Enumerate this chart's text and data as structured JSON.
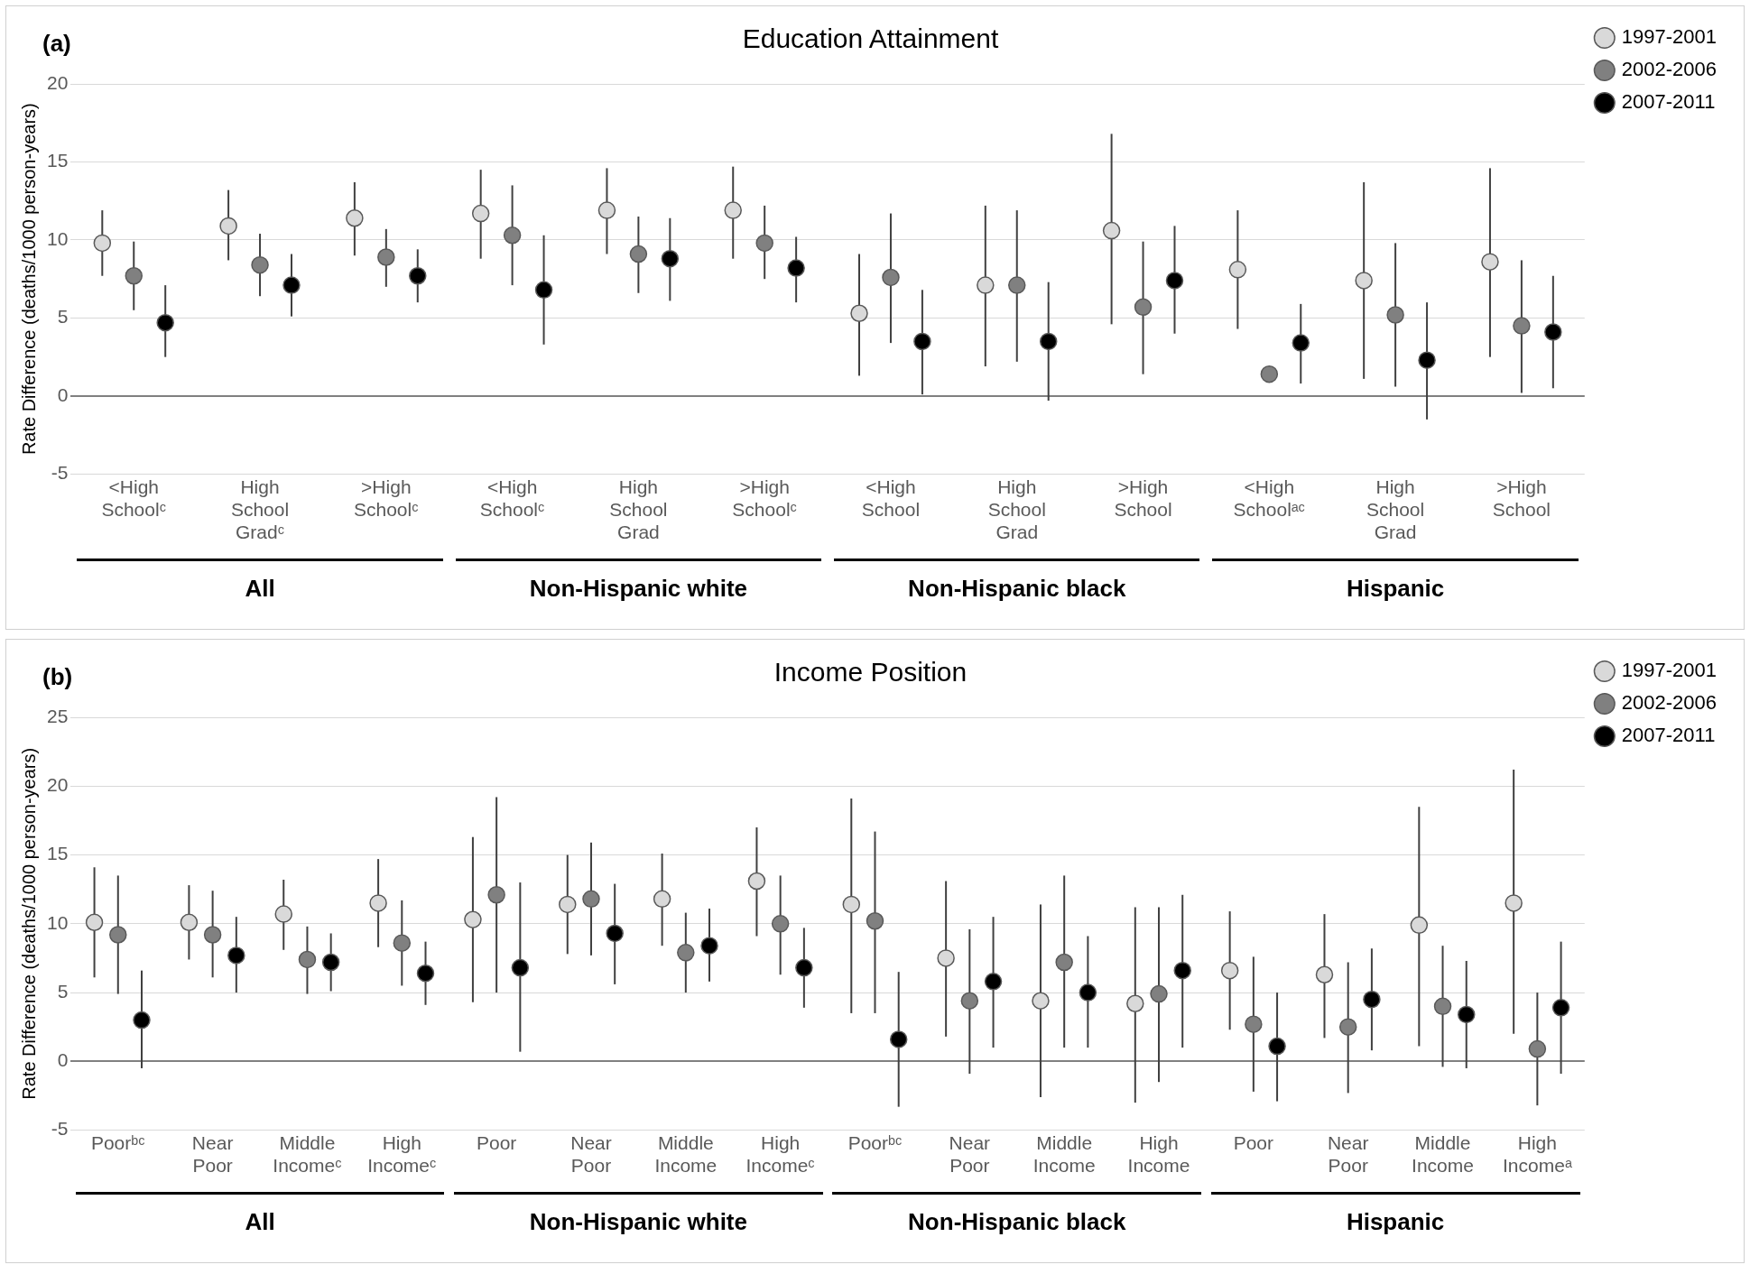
{
  "chart_data": [
    {
      "type": "scatter",
      "title": "Education Attainment",
      "ylabel": "Rate Difference (deaths/1000 person-years)",
      "categories": [
        "<High Schoolᶜ",
        "High School Gradᶜ",
        ">High Schoolᶜ",
        "<High Schoolᶜ",
        "High School Grad",
        ">High Schoolᶜ",
        "<High School",
        "High School Grad",
        ">High School",
        "<High Schoolᵃᶜ",
        "High School Grad",
        ">High School"
      ],
      "series": [
        {
          "name": "1997-2001",
          "color": "#d9d9d9",
          "values": [
            9.8,
            10.9,
            11.4,
            11.7,
            11.9,
            11.9,
            5.3,
            7.1,
            10.6,
            8.1,
            7.4,
            8.6
          ],
          "errors": [
            [
              7.7,
              11.9
            ],
            [
              8.7,
              13.2
            ],
            [
              9.0,
              13.7
            ],
            [
              8.8,
              14.5
            ],
            [
              9.1,
              14.6
            ],
            [
              8.8,
              14.7
            ],
            [
              1.3,
              9.1
            ],
            [
              1.9,
              12.2
            ],
            [
              4.6,
              16.8
            ],
            [
              4.3,
              11.9
            ],
            [
              1.1,
              13.7
            ],
            [
              2.5,
              14.6
            ]
          ]
        },
        {
          "name": "2002-2006",
          "color": "#808080",
          "values": [
            7.7,
            8.4,
            8.9,
            10.3,
            9.1,
            9.8,
            7.6,
            7.1,
            5.7,
            1.4,
            5.2,
            4.5
          ],
          "errors": [
            [
              5.5,
              9.9
            ],
            [
              6.4,
              10.4
            ],
            [
              7.0,
              10.7
            ],
            [
              7.1,
              13.5
            ],
            [
              6.6,
              11.5
            ],
            [
              7.5,
              12.2
            ],
            [
              3.4,
              11.7
            ],
            [
              2.2,
              11.9
            ],
            [
              1.4,
              9.9
            ],
            null,
            [
              0.6,
              9.8
            ],
            [
              0.2,
              8.7
            ]
          ]
        },
        {
          "name": "2007-2011",
          "color": "#000000",
          "values": [
            4.7,
            7.1,
            7.7,
            6.8,
            8.8,
            8.2,
            3.5,
            3.5,
            7.4,
            3.4,
            2.3,
            4.1
          ],
          "errors": [
            [
              2.5,
              7.1
            ],
            [
              5.1,
              9.1
            ],
            [
              6.0,
              9.4
            ],
            [
              3.3,
              10.3
            ],
            [
              6.1,
              11.4
            ],
            [
              6.0,
              10.2
            ],
            [
              0.1,
              6.8
            ],
            [
              -0.3,
              7.3
            ],
            [
              4.0,
              10.9
            ],
            [
              0.8,
              5.9
            ],
            [
              -1.5,
              6.0
            ],
            [
              0.5,
              7.7
            ]
          ]
        }
      ],
      "ylim": [
        -5,
        20
      ],
      "yticks": [
        -5,
        0,
        5,
        10,
        15,
        20
      ],
      "grid": "y",
      "legend": "top right",
      "marker": "circle",
      "annotations": [
        "(a)",
        "All",
        "Non-Hispanic white",
        "Non-Hispanic black",
        "Hispanic"
      ]
    },
    {
      "type": "scatter",
      "title": "Income Position",
      "ylabel": "Rate Difference (deaths/1000 person-years)",
      "categories": [
        "Poorᵇᶜ",
        "Near Poor",
        "Middle Incomeᶜ",
        "High Incomeᶜ",
        "Poor",
        "Near Poor",
        "Middle Income",
        "High Incomeᶜ",
        "Poorᵇᶜ",
        "Near Poor",
        "Middle Income",
        "High Income",
        "Poor",
        "Near Poor",
        "Middle Income",
        "High Incomeᵃ"
      ],
      "series": [
        {
          "name": "1997-2001",
          "color": "#d9d9d9",
          "values": [
            10.1,
            10.1,
            10.7,
            11.5,
            10.3,
            11.4,
            11.8,
            13.1,
            11.4,
            7.5,
            4.4,
            4.2,
            6.6,
            6.3,
            9.9,
            11.5
          ],
          "errors": [
            [
              6.1,
              14.1
            ],
            [
              7.4,
              12.8
            ],
            [
              8.1,
              13.2
            ],
            [
              8.3,
              14.7
            ],
            [
              4.3,
              16.3
            ],
            [
              7.8,
              15.0
            ],
            [
              8.4,
              15.1
            ],
            [
              9.1,
              17.0
            ],
            [
              3.5,
              19.1
            ],
            [
              1.8,
              13.1
            ],
            [
              -2.6,
              11.4
            ],
            [
              -3.0,
              11.2
            ],
            [
              2.3,
              10.9
            ],
            [
              1.7,
              10.7
            ],
            [
              1.1,
              18.5
            ],
            [
              2.0,
              21.2
            ]
          ]
        },
        {
          "name": "2002-2006",
          "color": "#808080",
          "values": [
            9.2,
            9.2,
            7.4,
            8.6,
            12.1,
            11.8,
            7.9,
            10.0,
            10.2,
            4.4,
            7.2,
            4.9,
            2.7,
            2.5,
            4.0,
            0.9
          ],
          "errors": [
            [
              4.9,
              13.5
            ],
            [
              6.1,
              12.4
            ],
            [
              4.9,
              9.8
            ],
            [
              5.5,
              11.7
            ],
            [
              5.0,
              19.2
            ],
            [
              7.7,
              15.9
            ],
            [
              5.0,
              10.8
            ],
            [
              6.3,
              13.5
            ],
            [
              3.5,
              16.7
            ],
            [
              -0.9,
              9.6
            ],
            [
              1.0,
              13.5
            ],
            [
              -1.5,
              11.2
            ],
            [
              -2.2,
              7.6
            ],
            [
              -2.3,
              7.2
            ],
            [
              -0.4,
              8.4
            ],
            [
              -3.2,
              5.0
            ]
          ]
        },
        {
          "name": "2007-2011",
          "color": "#000000",
          "values": [
            3.0,
            7.7,
            7.2,
            6.4,
            6.8,
            9.3,
            8.4,
            6.8,
            1.6,
            5.8,
            5.0,
            6.6,
            1.1,
            4.5,
            3.4,
            3.9
          ],
          "errors": [
            [
              -0.5,
              6.6
            ],
            [
              5.0,
              10.5
            ],
            [
              5.1,
              9.3
            ],
            [
              4.1,
              8.7
            ],
            [
              0.7,
              13.0
            ],
            [
              5.6,
              12.9
            ],
            [
              5.8,
              11.1
            ],
            [
              3.9,
              9.7
            ],
            [
              -3.3,
              6.5
            ],
            [
              1.0,
              10.5
            ],
            [
              1.0,
              9.1
            ],
            [
              1.0,
              12.1
            ],
            [
              -2.9,
              5.0
            ],
            [
              0.8,
              8.2
            ],
            [
              -0.5,
              7.3
            ],
            [
              -0.9,
              8.7
            ]
          ]
        }
      ],
      "ylim": [
        -5,
        25
      ],
      "yticks": [
        -5,
        0,
        5,
        10,
        15,
        20,
        25
      ],
      "grid": "y",
      "legend": "top right",
      "marker": "circle",
      "annotations": [
        "(b)",
        "All",
        "Non-Hispanic white",
        "Non-Hispanic black",
        "Hispanic"
      ]
    }
  ]
}
